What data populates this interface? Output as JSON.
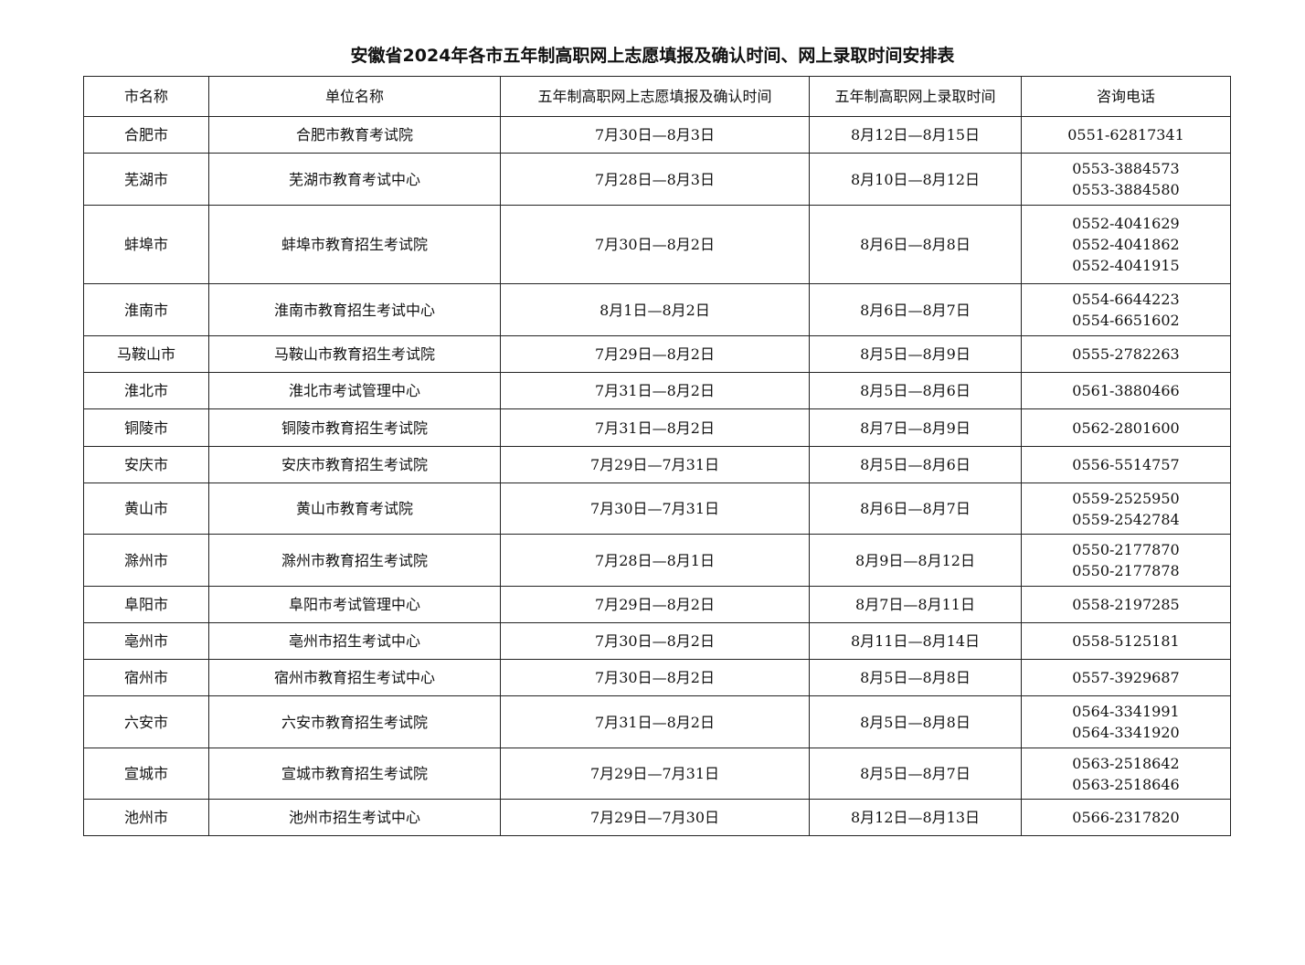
{
  "title": "安徽省2024年各市五年制高职网上志愿填报及确认时间、网上录取时间安排表",
  "headers": [
    "市名称",
    "单位名称",
    "五年制高职网上志愿填报及确认时间",
    "五年制高职网上录取时间",
    "咨询电话"
  ],
  "rows": [
    {
      "city": "合肥市",
      "unit": "合肥市教育考试院",
      "apply": "7月30日—8月3日",
      "admit": "8月12日—8月15日",
      "phones": [
        "0551-62817341"
      ]
    },
    {
      "city": "芜湖市",
      "unit": "芜湖市教育考试中心",
      "apply": "7月28日—8月3日",
      "admit": "8月10日—8月12日",
      "phones": [
        "0553-3884573",
        "0553-3884580"
      ]
    },
    {
      "city": "蚌埠市",
      "unit": "蚌埠市教育招生考试院",
      "apply": "7月30日—8月2日",
      "admit": "8月6日—8月8日",
      "phones": [
        "0552-4041629",
        "0552-4041862",
        "0552-4041915"
      ]
    },
    {
      "city": "淮南市",
      "unit": "淮南市教育招生考试中心",
      "apply": "8月1日—8月2日",
      "admit": "8月6日—8月7日",
      "phones": [
        "0554-6644223",
        "0554-6651602"
      ]
    },
    {
      "city": "马鞍山市",
      "unit": "马鞍山市教育招生考试院",
      "apply": "7月29日—8月2日",
      "admit": "8月5日—8月9日",
      "phones": [
        "0555-2782263"
      ]
    },
    {
      "city": "淮北市",
      "unit": "淮北市考试管理中心",
      "apply": "7月31日—8月2日",
      "admit": "8月5日—8月6日",
      "phones": [
        "0561-3880466"
      ]
    },
    {
      "city": "铜陵市",
      "unit": "铜陵市教育招生考试院",
      "apply": "7月31日—8月2日",
      "admit": "8月7日—8月9日",
      "phones": [
        "0562-2801600"
      ]
    },
    {
      "city": "安庆市",
      "unit": "安庆市教育招生考试院",
      "apply": "7月29日—7月31日",
      "admit": "8月5日—8月6日",
      "phones": [
        "0556-5514757"
      ]
    },
    {
      "city": "黄山市",
      "unit": "黄山市教育考试院",
      "apply": "7月30日—7月31日",
      "admit": "8月6日—8月7日",
      "phones": [
        "0559-2525950",
        "0559-2542784"
      ]
    },
    {
      "city": "滁州市",
      "unit": "滁州市教育招生考试院",
      "apply": "7月28日—8月1日",
      "admit": "8月9日—8月12日",
      "phones": [
        "0550-2177870",
        "0550-2177878"
      ]
    },
    {
      "city": "阜阳市",
      "unit": "阜阳市考试管理中心",
      "apply": "7月29日—8月2日",
      "admit": "8月7日—8月11日",
      "phones": [
        "0558-2197285"
      ]
    },
    {
      "city": "亳州市",
      "unit": "亳州市招生考试中心",
      "apply": "7月30日—8月2日",
      "admit": "8月11日—8月14日",
      "phones": [
        "0558-5125181"
      ]
    },
    {
      "city": "宿州市",
      "unit": "宿州市教育招生考试中心",
      "apply": "7月30日—8月2日",
      "admit": "8月5日—8月8日",
      "phones": [
        "0557-3929687"
      ]
    },
    {
      "city": "六安市",
      "unit": "六安市教育招生考试院",
      "apply": "7月31日—8月2日",
      "admit": "8月5日—8月8日",
      "phones": [
        "0564-3341991",
        "0564-3341920"
      ]
    },
    {
      "city": "宣城市",
      "unit": "宣城市教育招生考试院",
      "apply": "7月29日—7月31日",
      "admit": "8月5日—8月7日",
      "phones": [
        "0563-2518642",
        "0563-2518646"
      ]
    },
    {
      "city": "池州市",
      "unit": "池州市招生考试中心",
      "apply": "7月29日—7月30日",
      "admit": "8月12日—8月13日",
      "phones": [
        "0566-2317820"
      ]
    }
  ]
}
